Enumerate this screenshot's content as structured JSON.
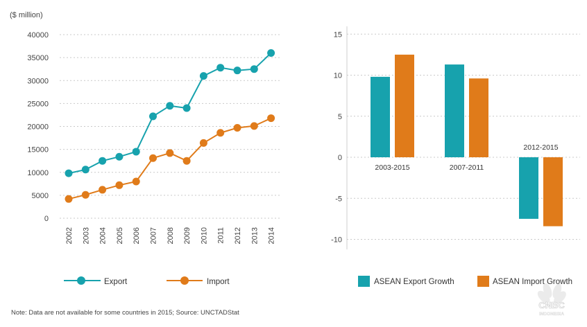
{
  "line_chart_unit": "($ million)",
  "bar_chart_labels": {
    "bar_groups": [
      "2003-2015",
      "2007-2011",
      "2012-2015"
    ]
  },
  "legend": {
    "export": "Export",
    "import": "Import",
    "asean_export": "ASEAN Export Growth",
    "asean_import": "ASEAN Import Growth"
  },
  "note": "Note: Data are not available for some countries in 2015; Source: UNCTADStat",
  "watermark": {
    "line1": "CNBC",
    "line2": "INDONESIA"
  },
  "colors": {
    "export": "#17a2ad",
    "import": "#e07b1a"
  },
  "chart_data": [
    {
      "type": "line",
      "title": "",
      "ylabel": "($ million)",
      "xlabel": "",
      "x": [
        "2002",
        "2003",
        "2004",
        "2005",
        "2006",
        "2007",
        "2008",
        "2009",
        "2010",
        "2011",
        "2012",
        "2013",
        "2014"
      ],
      "ylim": [
        0,
        40000
      ],
      "yticks": [
        0,
        5000,
        10000,
        15000,
        20000,
        25000,
        30000,
        35000,
        40000
      ],
      "series": [
        {
          "name": "Export",
          "values": [
            9800,
            10600,
            12500,
            13400,
            14500,
            22200,
            24500,
            24000,
            31000,
            32800,
            32200,
            32500,
            36000
          ]
        },
        {
          "name": "Import",
          "values": [
            4200,
            5100,
            6200,
            7200,
            8000,
            13100,
            14200,
            12500,
            16400,
            18600,
            19700,
            20100,
            21800
          ]
        }
      ],
      "legend": "bottom"
    },
    {
      "type": "bar",
      "title": "",
      "categories": [
        "2003-2015",
        "2007-2011",
        "2012-2015"
      ],
      "ylim": [
        -11,
        15.5
      ],
      "yticks": [
        -10,
        -5,
        0,
        5,
        10,
        15
      ],
      "series": [
        {
          "name": "ASEAN Export Growth",
          "values": [
            9.8,
            11.3,
            -7.5
          ]
        },
        {
          "name": "ASEAN Import Growth",
          "values": [
            12.5,
            9.6,
            -8.4
          ]
        }
      ],
      "legend": "bottom"
    }
  ]
}
